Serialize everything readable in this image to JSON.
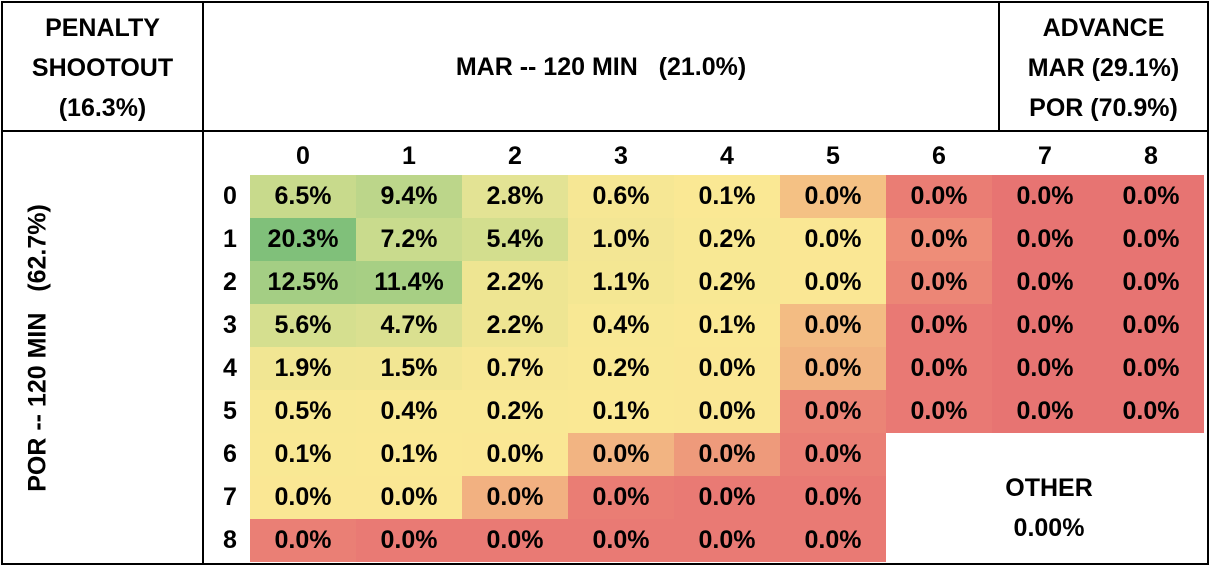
{
  "chart_data": {
    "type": "heatmap",
    "corner_top_left": [
      "PENALTY",
      "SHOOTOUT",
      "(16.3%)"
    ],
    "column_header": "MAR -- 120 MIN   (21.0%)",
    "corner_top_right": [
      "ADVANCE",
      "MAR (29.1%)",
      "POR (70.9%)"
    ],
    "row_header": "POR -- 120 MIN   (62.7%)",
    "x_categories": [
      "0",
      "1",
      "2",
      "3",
      "4",
      "5",
      "6",
      "7",
      "8"
    ],
    "y_categories": [
      "0",
      "1",
      "2",
      "3",
      "4",
      "5",
      "6",
      "7",
      "8"
    ],
    "values": [
      [
        "6.5%",
        "9.4%",
        "2.8%",
        "0.6%",
        "0.1%",
        "0.0%",
        "0.0%",
        "0.0%",
        "0.0%"
      ],
      [
        "20.3%",
        "7.2%",
        "5.4%",
        "1.0%",
        "0.2%",
        "0.0%",
        "0.0%",
        "0.0%",
        "0.0%"
      ],
      [
        "12.5%",
        "11.4%",
        "2.2%",
        "1.1%",
        "0.2%",
        "0.0%",
        "0.0%",
        "0.0%",
        "0.0%"
      ],
      [
        "5.6%",
        "4.7%",
        "2.2%",
        "0.4%",
        "0.1%",
        "0.0%",
        "0.0%",
        "0.0%",
        "0.0%"
      ],
      [
        "1.9%",
        "1.5%",
        "0.7%",
        "0.2%",
        "0.0%",
        "0.0%",
        "0.0%",
        "0.0%",
        "0.0%"
      ],
      [
        "0.5%",
        "0.4%",
        "0.2%",
        "0.1%",
        "0.0%",
        "0.0%",
        "0.0%",
        "0.0%",
        "0.0%"
      ],
      [
        "0.1%",
        "0.1%",
        "0.0%",
        "0.0%",
        "0.0%",
        "0.0%",
        null,
        null,
        null
      ],
      [
        "0.0%",
        "0.0%",
        "0.0%",
        "0.0%",
        "0.0%",
        "0.0%",
        null,
        null,
        null
      ],
      [
        "0.0%",
        "0.0%",
        "0.0%",
        "0.0%",
        "0.0%",
        "0.0%",
        null,
        null,
        null
      ]
    ],
    "colors": [
      [
        "#c8da8c",
        "#bcd68a",
        "#e3e394",
        "#f6e794",
        "#fae894",
        "#f4c184",
        "#ea7d74",
        "#e77472",
        "#e77472"
      ],
      [
        "#80c07a",
        "#c9db8d",
        "#d3de8e",
        "#f3e694",
        "#f8e894",
        "#fae794",
        "#ee8d78",
        "#e77472",
        "#e77472"
      ],
      [
        "#a4ce84",
        "#a7cf84",
        "#eee592",
        "#f4e793",
        "#f8e894",
        "#fae794",
        "#ec8676",
        "#e77472",
        "#e77472"
      ],
      [
        "#d5df8f",
        "#dae090",
        "#eee592",
        "#f8e894",
        "#fae894",
        "#f3bc83",
        "#e97974",
        "#e77472",
        "#e77472"
      ],
      [
        "#f1e693",
        "#f2e693",
        "#f7e794",
        "#f9e894",
        "#fae794",
        "#f2b581",
        "#e97974",
        "#e77472",
        "#e77472"
      ],
      [
        "#f8e894",
        "#f9e894",
        "#f9e894",
        "#fae894",
        "#fae794",
        "#eb8476",
        "#e97974",
        "#e77472",
        "#e77472"
      ],
      [
        "#f9e894",
        "#fae894",
        "#fae794",
        "#f2b482",
        "#ee9a7b",
        "#ea7f75",
        null,
        null,
        null
      ],
      [
        "#fae794",
        "#fae794",
        "#f2b181",
        "#ea7d74",
        "#e97a74",
        "#e97a74",
        null,
        null,
        null
      ],
      [
        "#ea7f75",
        "#e97a74",
        "#e97a74",
        "#e97a74",
        "#e97a74",
        "#e97a74",
        null,
        null,
        null
      ]
    ],
    "other_label": "OTHER",
    "other_value": "0.00%"
  }
}
